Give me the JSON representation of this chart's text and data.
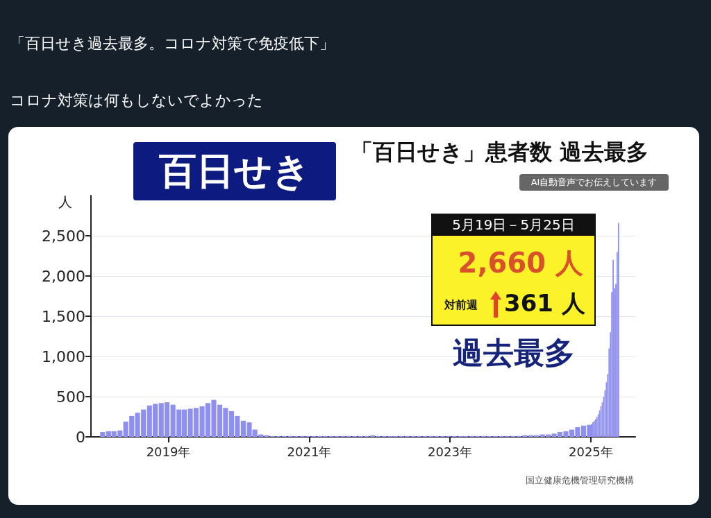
{
  "chart_data": {
    "type": "bar",
    "title": "「百日せき」患者数 過去最多",
    "ylabel": "人",
    "annotations": [
      "「百日せき過去最多。コロナ対策で免疫低下」",
      "コロナ対策は何もしないでよかった",
      "百日せき",
      "AI自動音声でお伝えしています",
      "5月19日－5月25日",
      "2,660 人",
      "対前週",
      "361 人",
      "過去最多",
      "国立健康危機管理研究機構"
    ],
    "series": [
      {
        "color": "#8f8ff0",
        "x": [
          "2018-01-15",
          "2018-02-15",
          "2018-03-15",
          "2018-04-15",
          "2018-05-15",
          "2018-06-15",
          "2018-07-15",
          "2018-08-15",
          "2018-09-15",
          "2018-10-15",
          "2018-11-15",
          "2018-12-15",
          "2019-01-15",
          "2019-02-15",
          "2019-03-15",
          "2019-04-15",
          "2019-05-15",
          "2019-06-15",
          "2019-07-15",
          "2019-08-15",
          "2019-09-15",
          "2019-10-15",
          "2019-11-15",
          "2019-12-15",
          "2020-01-15",
          "2020-02-15",
          "2020-03-15",
          "2020-04-15",
          "2020-05-15",
          "2020-06-15",
          "2020-07-15",
          "2020-08-15",
          "2020-09-15",
          "2020-10-15",
          "2020-11-15",
          "2020-12-15",
          "2021-01-15",
          "2021-02-15",
          "2021-03-15",
          "2021-04-15",
          "2021-05-15",
          "2021-06-15",
          "2021-07-15",
          "2021-08-15",
          "2021-09-15",
          "2021-10-15",
          "2021-11-15",
          "2021-12-15",
          "2022-01-15",
          "2022-02-15",
          "2022-03-15",
          "2022-04-15",
          "2022-05-15",
          "2022-06-15",
          "2022-07-15",
          "2022-08-15",
          "2022-09-15",
          "2022-10-15",
          "2022-11-15",
          "2022-12-15",
          "2023-01-15",
          "2023-02-15",
          "2023-03-15",
          "2023-04-15",
          "2023-05-15",
          "2023-06-15",
          "2023-07-15",
          "2023-08-15",
          "2023-09-15",
          "2023-10-15",
          "2023-11-15",
          "2023-12-15",
          "2024-01-15",
          "2024-02-15",
          "2024-03-15",
          "2024-04-15",
          "2024-05-15",
          "2024-06-15",
          "2024-07-15",
          "2024-08-15",
          "2024-09-15",
          "2024-10-15",
          "2024-11-15",
          "2024-12-15"
        ],
        "values": [
          60,
          70,
          70,
          80,
          190,
          260,
          300,
          340,
          390,
          410,
          420,
          430,
          400,
          340,
          340,
          350,
          360,
          380,
          420,
          460,
          400,
          360,
          320,
          260,
          200,
          180,
          90,
          30,
          20,
          10,
          10,
          10,
          10,
          10,
          10,
          10,
          10,
          10,
          10,
          10,
          10,
          10,
          10,
          10,
          10,
          10,
          20,
          10,
          10,
          10,
          10,
          10,
          10,
          10,
          10,
          10,
          10,
          10,
          10,
          10,
          10,
          10,
          10,
          10,
          10,
          10,
          10,
          10,
          10,
          10,
          10,
          10,
          20,
          20,
          20,
          30,
          30,
          40,
          60,
          70,
          90,
          120,
          140,
          150
        ]
      },
      {
        "color": "#8f8ff0",
        "x": [
          "2025-01-05",
          "2025-01-12",
          "2025-01-19",
          "2025-01-26",
          "2025-02-02",
          "2025-02-09",
          "2025-02-16",
          "2025-02-23",
          "2025-03-02",
          "2025-03-09",
          "2025-03-16",
          "2025-03-23",
          "2025-03-30",
          "2025-04-06",
          "2025-04-13",
          "2025-04-20",
          "2025-04-27",
          "2025-05-04",
          "2025-05-11",
          "2025-05-18",
          "2025-05-25"
        ],
        "values": [
          160,
          180,
          200,
          220,
          250,
          280,
          330,
          380,
          430,
          500,
          580,
          680,
          780,
          1100,
          1300,
          1800,
          2200,
          1850,
          1900,
          2300,
          2660
        ]
      }
    ],
    "xlim": [
      "2017-11-25",
      "2025-08-20"
    ],
    "xticks": [
      {
        "value": "2019-01-01",
        "label": "2019年"
      },
      {
        "value": "2021-01-01",
        "label": "2021年"
      },
      {
        "value": "2023-01-01",
        "label": "2023年"
      },
      {
        "value": "2025-01-01",
        "label": "2025年"
      }
    ],
    "ylim": [
      0,
      3000
    ],
    "yticks": [
      0,
      500,
      {
        "value": 1000,
        "label": "1,000"
      },
      {
        "value": 1500,
        "label": "1,500"
      },
      {
        "value": 2000,
        "label": "2,000"
      },
      {
        "value": 2500,
        "label": "2,500"
      }
    ],
    "grid": "y"
  }
}
